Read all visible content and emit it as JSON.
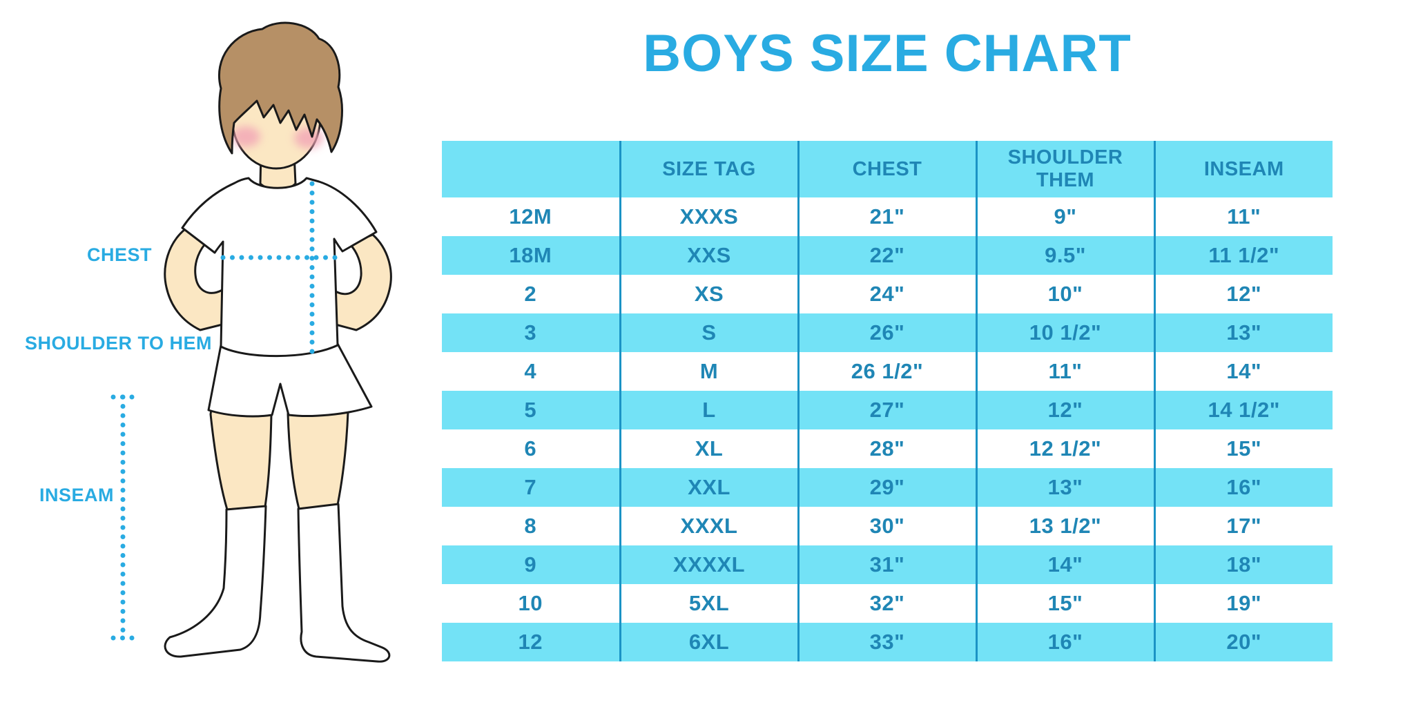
{
  "page": {
    "title": "BOYS SIZE CHART"
  },
  "colors": {
    "accent": "#29ABE2",
    "stripe": "#73E2F6",
    "table_text": "#1F86B5",
    "divider": "#1B93C5",
    "skin": "#FBE7C3",
    "hair": "#B69066",
    "blush": "#F2A4B6",
    "outline": "#1A1A1A"
  },
  "figure": {
    "labels": {
      "chest": "CHEST",
      "shoulder_to_hem": "SHOULDER TO HEM",
      "inseam": "INSEAM"
    }
  },
  "table": {
    "headers": [
      "",
      "SIZE TAG",
      "CHEST",
      "SHOULDER THEM",
      "INSEAM"
    ],
    "rows": [
      [
        "12M",
        "XXXS",
        "21\"",
        "9\"",
        "11\""
      ],
      [
        "18M",
        "XXS",
        "22\"",
        "9.5\"",
        "11 1/2\""
      ],
      [
        "2",
        "XS",
        "24\"",
        "10\"",
        "12\""
      ],
      [
        "3",
        "S",
        "26\"",
        "10 1/2\"",
        "13\""
      ],
      [
        "4",
        "M",
        "26 1/2\"",
        "11\"",
        "14\""
      ],
      [
        "5",
        "L",
        "27\"",
        "12\"",
        "14 1/2\""
      ],
      [
        "6",
        "XL",
        "28\"",
        "12 1/2\"",
        "15\""
      ],
      [
        "7",
        "XXL",
        "29\"",
        "13\"",
        "16\""
      ],
      [
        "8",
        "XXXL",
        "30\"",
        "13 1/2\"",
        "17\""
      ],
      [
        "9",
        "XXXXL",
        "31\"",
        "14\"",
        "18\""
      ],
      [
        "10",
        "5XL",
        "32\"",
        "15\"",
        "19\""
      ],
      [
        "12",
        "6XL",
        "33\"",
        "16\"",
        "20\""
      ]
    ]
  },
  "chart_data": {
    "type": "table",
    "title": "BOYS SIZE CHART",
    "columns": [
      "",
      "SIZE TAG",
      "CHEST",
      "SHOULDER THEM",
      "INSEAM"
    ],
    "rows": [
      [
        "12M",
        "XXXS",
        "21\"",
        "9\"",
        "11\""
      ],
      [
        "18M",
        "XXS",
        "22\"",
        "9.5\"",
        "11 1/2\""
      ],
      [
        "2",
        "XS",
        "24\"",
        "10\"",
        "12\""
      ],
      [
        "3",
        "S",
        "26\"",
        "10 1/2\"",
        "13\""
      ],
      [
        "4",
        "M",
        "26 1/2\"",
        "11\"",
        "14\""
      ],
      [
        "5",
        "L",
        "27\"",
        "12\"",
        "14 1/2\""
      ],
      [
        "6",
        "XL",
        "28\"",
        "12 1/2\"",
        "15\""
      ],
      [
        "7",
        "XXL",
        "29\"",
        "13\"",
        "16\""
      ],
      [
        "8",
        "XXXL",
        "30\"",
        "13 1/2\"",
        "17\""
      ],
      [
        "9",
        "XXXXL",
        "31\"",
        "14\"",
        "18\""
      ],
      [
        "10",
        "5XL",
        "32\"",
        "15\"",
        "19\""
      ],
      [
        "12",
        "6XL",
        "33\"",
        "16\"",
        "20\""
      ]
    ],
    "units": "inches",
    "annotations": [
      "CHEST",
      "SHOULDER TO HEM",
      "INSEAM"
    ]
  }
}
